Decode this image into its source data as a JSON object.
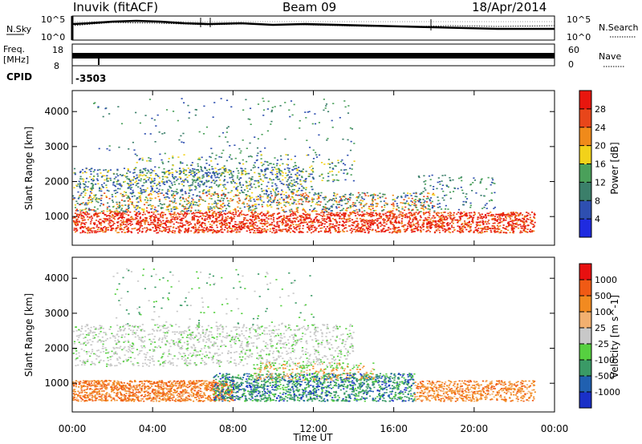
{
  "header": {
    "station": "Inuvik (fitACF)",
    "beam": "Beam 09",
    "date": "18/Apr/2014"
  },
  "top_panel": {
    "left_label": "N.Sky",
    "left_ticks": [
      "10^5",
      "10^0"
    ],
    "right_label": "N.Search",
    "right_ticks": [
      "10^5",
      "10^0"
    ]
  },
  "freq_panel": {
    "left_label_1": "Freq.",
    "left_label_2": "[MHz]",
    "left_ticks": [
      "18",
      "8"
    ],
    "right_label": "Nave",
    "right_ticks": [
      "60",
      "0"
    ]
  },
  "cpid": {
    "label": "CPID",
    "value": "-3503"
  },
  "colors": {
    "power": [
      "#1f2be0",
      "#2e4fb0",
      "#3b7f6a",
      "#4aa05a",
      "#f2d21a",
      "#f08a1a",
      "#e8461a",
      "#e8160e"
    ],
    "velocity": [
      "#e81010",
      "#f05a14",
      "#f28a20",
      "#f2b070",
      "#c8c8c8",
      "#56d040",
      "#3a9a66",
      "#2060b0",
      "#1a30c8"
    ]
  },
  "chart_data": [
    {
      "type": "heatmap",
      "title": "",
      "xlabel": "",
      "ylabel": "Slant Range [km]",
      "x_ticks": [
        "00:00",
        "04:00",
        "08:00",
        "12:00",
        "16:00",
        "20:00",
        "00:00"
      ],
      "y_ticks": [
        "1000",
        "2000",
        "3000",
        "4000"
      ],
      "xlim_hours": [
        0,
        24
      ],
      "ylim_km": [
        180,
        4600
      ],
      "colorbar": {
        "label": "Power [dB]",
        "ticks": [
          "4",
          "8",
          "12",
          "16",
          "20",
          "24",
          "28"
        ],
        "range": [
          0,
          30
        ]
      }
    },
    {
      "type": "heatmap",
      "title": "",
      "xlabel": "Time UT",
      "ylabel": "Slant Range [km]",
      "x_ticks": [
        "00:00",
        "04:00",
        "08:00",
        "12:00",
        "16:00",
        "20:00",
        "00:00"
      ],
      "y_ticks": [
        "1000",
        "2000",
        "3000",
        "4000"
      ],
      "xlim_hours": [
        0,
        24
      ],
      "ylim_km": [
        180,
        4600
      ],
      "colorbar": {
        "label": "Velocity [m s^-1]",
        "ticks": [
          "1000",
          "500",
          "100",
          "25",
          "-25",
          "-100",
          "-500",
          "-1000"
        ]
      }
    }
  ]
}
